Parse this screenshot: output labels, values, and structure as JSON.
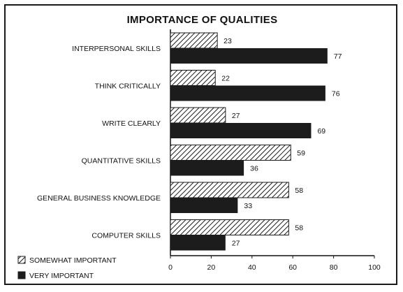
{
  "chart_data": {
    "type": "bar",
    "orientation": "horizontal",
    "title": "IMPORTANCE OF QUALITIES",
    "xlabel": "",
    "ylabel": "",
    "categories": [
      "INTERPERSONAL SKILLS",
      "THINK CRITICALLY",
      "WRITE CLEARLY",
      "QUANTITATIVE SKILLS",
      "GENERAL BUSINESS KNOWLEDGE",
      "COMPUTER SKILLS"
    ],
    "series": [
      {
        "name": "SOMEWHAT IMPORTANT",
        "values": [
          23,
          22,
          27,
          59,
          58,
          58
        ],
        "pattern": "hatched"
      },
      {
        "name": "VERY IMPORTANT",
        "values": [
          77,
          76,
          69,
          36,
          33,
          27
        ],
        "pattern": "solid"
      }
    ],
    "xlim": [
      0,
      100
    ],
    "xticks": [
      0,
      20,
      40,
      60,
      80,
      100
    ],
    "grid": false,
    "legend_position": "bottom-left",
    "colors": {
      "bar": "#1c1c1c",
      "hatch_bg": "#ffffff",
      "text": "#111111"
    }
  }
}
